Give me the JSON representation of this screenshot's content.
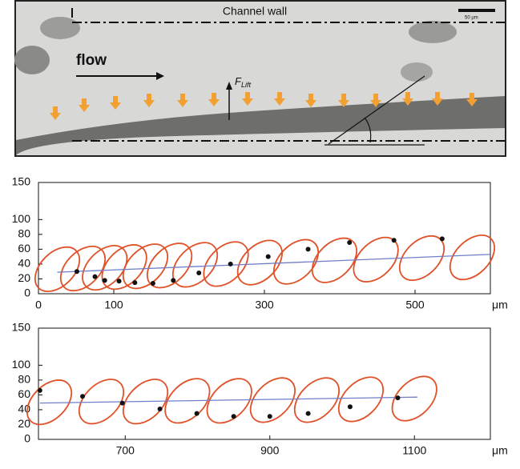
{
  "image": {
    "wall_label": "Channel wall",
    "flow_label": "flow",
    "force_label": "F",
    "force_subscript": "Lift",
    "scale_label": "50 μm"
  },
  "chart_data": [
    {
      "type": "scatter",
      "x_label": "μm",
      "xlim": [
        0,
        600
      ],
      "xticks": [
        0,
        100,
        300,
        500
      ],
      "ylim": [
        0,
        150
      ],
      "yticks": [
        0,
        20,
        40,
        60,
        80,
        100,
        150
      ],
      "series": [
        {
          "color": "#e0522a",
          "marker": "ellipse",
          "x": [
            25,
            59,
            88,
            114,
            142,
            174,
            208,
            249,
            294,
            342,
            393,
            448,
            509,
            576
          ],
          "y": [
            33,
            34,
            35,
            36,
            37,
            38,
            39,
            40,
            42,
            43,
            45,
            46,
            48,
            49
          ]
        },
        {
          "color": "#6f7fc9",
          "marker": "line",
          "x": [
            25,
            599
          ],
          "y": [
            29,
            53
          ]
        },
        {
          "color": "#111111",
          "marker": "dot",
          "x": [
            51,
            75,
            88,
            107,
            128,
            152,
            179,
            213,
            255,
            305,
            358,
            413,
            472,
            536
          ],
          "y": [
            30,
            23,
            18,
            17,
            15,
            14,
            18,
            28,
            40,
            50,
            60,
            69,
            72,
            74
          ]
        }
      ]
    },
    {
      "type": "scatter",
      "x_label": "μm",
      "xlim": [
        580,
        1205
      ],
      "xticks": [
        700,
        900,
        1100
      ],
      "ylim": [
        0,
        150
      ],
      "yticks": [
        0,
        20,
        40,
        60,
        80,
        100,
        150
      ],
      "series": [
        {
          "color": "#e0522a",
          "marker": "ellipse",
          "x": [
            595,
            667,
            728,
            786,
            844,
            904,
            965,
            1026,
            1100
          ],
          "y": [
            50,
            51,
            51,
            52,
            52,
            53,
            53,
            54,
            55
          ]
        },
        {
          "color": "#6f7fc9",
          "marker": "line",
          "x": [
            582,
            1104
          ],
          "y": [
            49,
            57
          ]
        },
        {
          "color": "#111111",
          "marker": "dot",
          "x": [
            582,
            641,
            696,
            748,
            799,
            850,
            900,
            953,
            1011,
            1077
          ],
          "y": [
            66,
            58,
            49,
            41,
            35,
            31,
            31,
            35,
            44,
            56
          ]
        }
      ]
    }
  ]
}
